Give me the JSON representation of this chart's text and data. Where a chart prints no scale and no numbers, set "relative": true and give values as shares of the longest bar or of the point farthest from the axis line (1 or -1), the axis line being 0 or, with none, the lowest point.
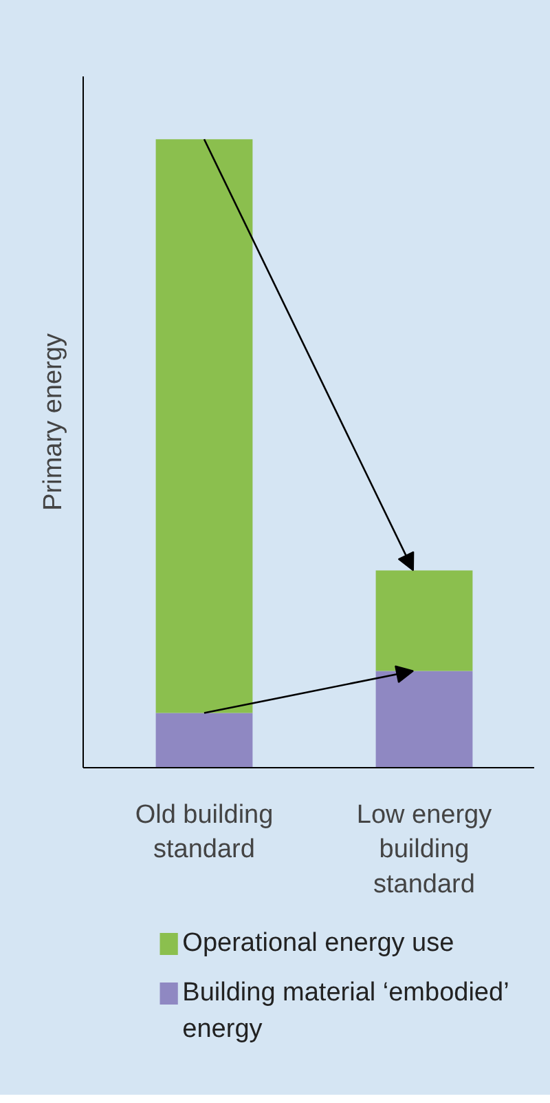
{
  "chart_data": {
    "type": "bar",
    "stacked": true,
    "relative": true,
    "ylabel": "Primary energy",
    "categories": [
      "Old building standard",
      "Low energy building standard"
    ],
    "series": [
      {
        "name": "Building material ‘embodied’ energy",
        "color": "#8f88c2",
        "values": [
          0.087,
          0.154
        ]
      },
      {
        "name": "Operational energy use",
        "color": "#8bbf4e",
        "values": [
          0.913,
          0.16
        ]
      }
    ],
    "legend": "bottom",
    "grid": false
  }
}
